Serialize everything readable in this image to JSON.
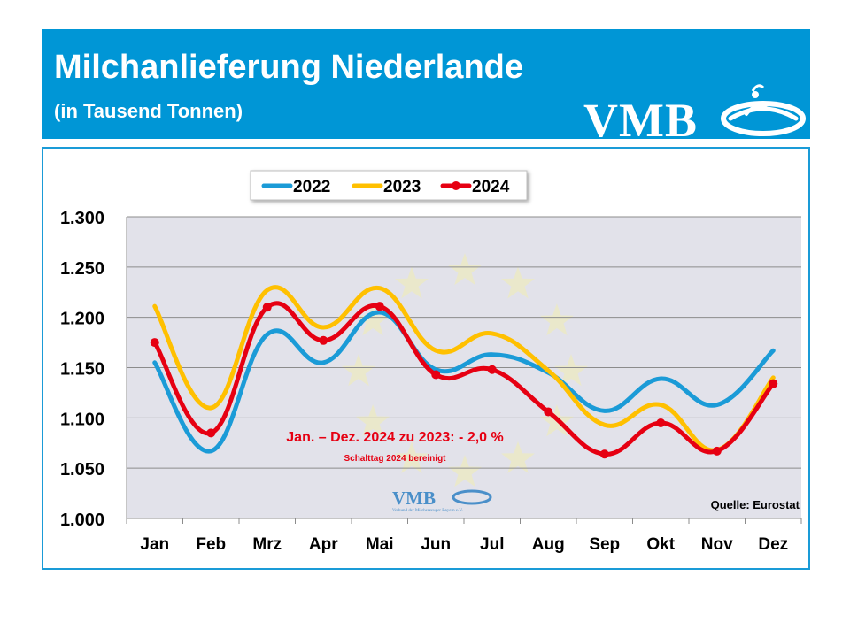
{
  "header": {
    "title": "Milchanlieferung Niederlande",
    "subtitle": "(in Tausend Tonnen)",
    "logo_text": "VMB"
  },
  "chart_data": {
    "type": "line",
    "categories": [
      "Jan",
      "Feb",
      "Mrz",
      "Apr",
      "Mai",
      "Jun",
      "Jul",
      "Aug",
      "Sep",
      "Okt",
      "Nov",
      "Dez"
    ],
    "series": [
      {
        "name": "2022",
        "color": "#1b9bd7",
        "values": [
          1155,
          1067,
          1183,
          1155,
          1205,
          1148,
          1163,
          1145,
          1107,
          1139,
          1113,
          1167
        ],
        "markers": false
      },
      {
        "name": "2023",
        "color": "#ffc000",
        "values": [
          1211,
          1110,
          1227,
          1190,
          1229,
          1167,
          1184,
          1147,
          1093,
          1113,
          1068,
          1140
        ],
        "markers": false
      },
      {
        "name": "2024",
        "color": "#e60012",
        "values": [
          1175,
          1085,
          1210,
          1177,
          1211,
          1143,
          1148,
          1106,
          1064,
          1095,
          1067,
          1134
        ],
        "markers": true
      }
    ],
    "ylim": [
      1000,
      1300
    ],
    "yticks": [
      "1.000",
      "1.050",
      "1.100",
      "1.150",
      "1.200",
      "1.250",
      "1.300"
    ],
    "grid": true,
    "legend": "top-left",
    "annotation": {
      "main": "Jan. – Dez. 2024 zu 2023: - 2,0 %",
      "note": "Schalttag 2024 bereinigt"
    },
    "watermark": {
      "logo_text": "VMB",
      "caption": "Verbund der Milcherzeuger Bayern e.V."
    },
    "source": "Quelle: Eurostat"
  }
}
